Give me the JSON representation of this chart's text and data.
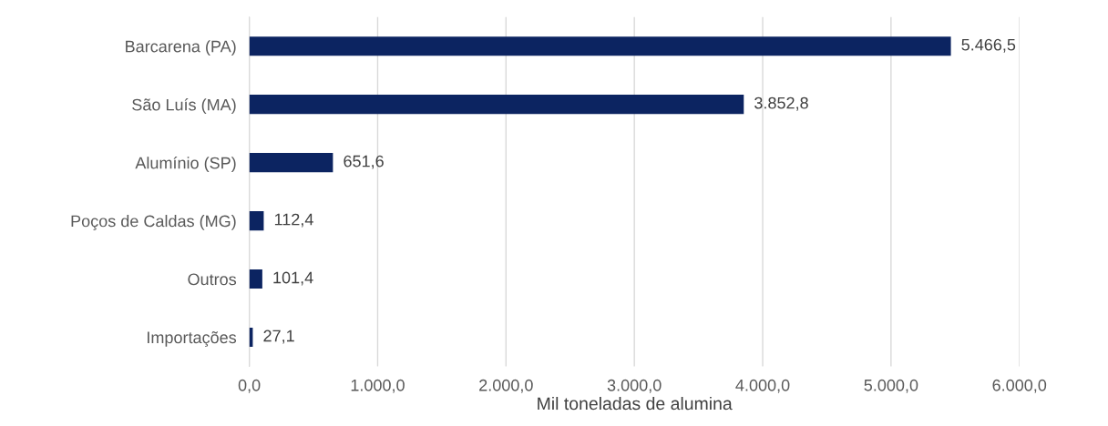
{
  "chart_data": {
    "type": "bar",
    "orientation": "horizontal",
    "xlabel": "Mil toneladas de alumina",
    "categories": [
      "Barcarena (PA)",
      "São Luís (MA)",
      "Alumínio (SP)",
      "Poços de Caldas (MG)",
      "Outros",
      "Importações"
    ],
    "values": [
      5466.5,
      3852.8,
      651.6,
      112.4,
      101.4,
      27.1
    ],
    "value_labels": [
      "5.466,5",
      "3.852,8",
      "651,6",
      "112,4",
      "101,4",
      "27,1"
    ],
    "color": "#0c2461",
    "xlim": [
      0,
      6000
    ],
    "xticks": [
      {
        "value": 0,
        "label": "0,0"
      },
      {
        "value": 1000,
        "label": "1.000,0"
      },
      {
        "value": 2000,
        "label": "2.000,0"
      },
      {
        "value": 3000,
        "label": "3.000,0"
      },
      {
        "value": 4000,
        "label": "4.000,0"
      },
      {
        "value": 5000,
        "label": "5.000,0"
      },
      {
        "value": 6000,
        "label": "6.000,0"
      }
    ],
    "grid": "x",
    "legend": false
  }
}
